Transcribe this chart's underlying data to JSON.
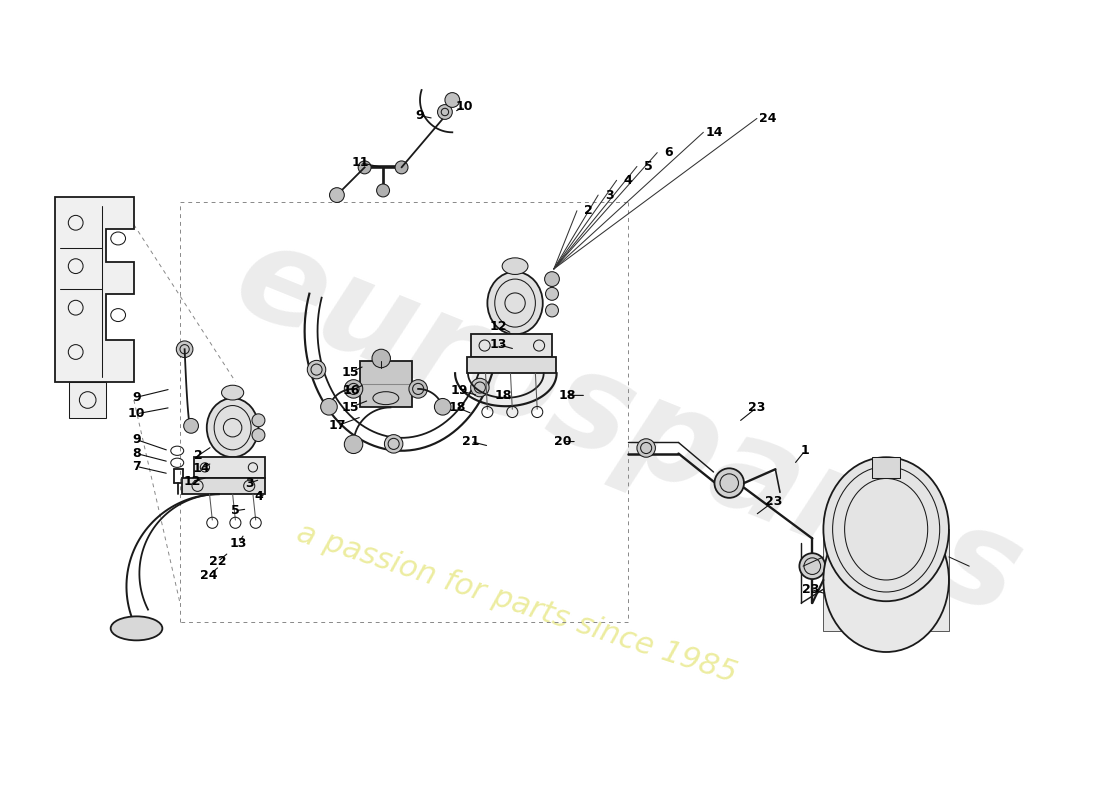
{
  "bg_color": "#ffffff",
  "lc": "#1a1a1a",
  "lw": 1.3,
  "lt": 0.75,
  "wm1": "eurospares",
  "wm2": "a passion for parts since 1985",
  "wm1_color": "#d0d0d0",
  "wm2_color": "#e8e888",
  "figsize": [
    11.0,
    8.0
  ],
  "dpi": 100,
  "xlim": [
    0,
    1100
  ],
  "ylim": [
    0,
    800
  ]
}
